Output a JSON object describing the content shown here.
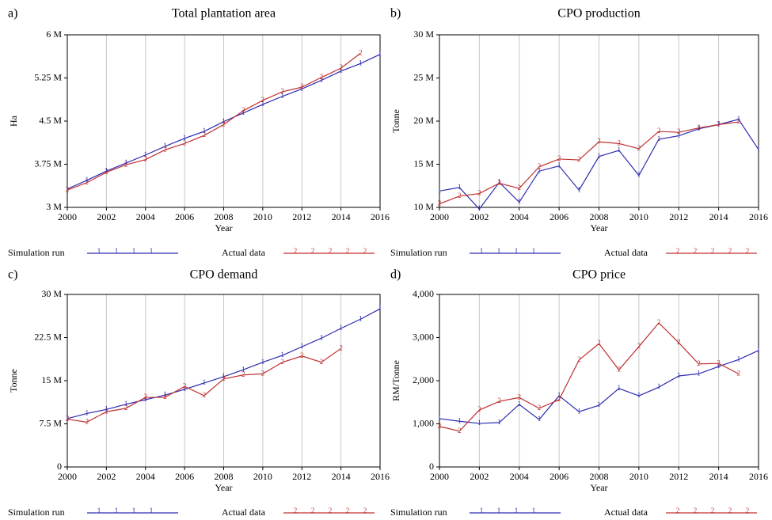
{
  "chart_data": [
    {
      "type": "line",
      "label": "a)",
      "title": "Total plantation area",
      "x_label": "Year",
      "y_label": "Ha",
      "x": [
        2000,
        2001,
        2002,
        2003,
        2004,
        2005,
        2006,
        2007,
        2008,
        2009,
        2010,
        2011,
        2012,
        2013,
        2014,
        2015,
        2016
      ],
      "series": [
        {
          "name": "Simulation run",
          "color": "#2b2bb0",
          "marker": "1",
          "values": [
            3320000,
            3470000,
            3630000,
            3770000,
            3910000,
            4060000,
            4200000,
            4320000,
            4490000,
            4640000,
            4790000,
            4930000,
            5060000,
            5210000,
            5370000,
            5500000,
            5660000
          ]
        },
        {
          "name": "Actual data",
          "color": "#c03030",
          "marker": "2",
          "values": [
            3300000,
            3430000,
            3610000,
            3740000,
            3830000,
            4000000,
            4110000,
            4250000,
            4440000,
            4680000,
            4860000,
            5010000,
            5090000,
            5260000,
            5420000,
            5680000,
            null
          ]
        }
      ],
      "xlim": [
        2000,
        2016
      ],
      "xticks": [
        2000,
        2002,
        2004,
        2006,
        2008,
        2010,
        2012,
        2014,
        2016
      ],
      "ylim": [
        3000000,
        6000000
      ],
      "yticks": [
        {
          "value": 3000000,
          "label": "3 M"
        },
        {
          "value": 3750000,
          "label": "3.75 M"
        },
        {
          "value": 4500000,
          "label": "4.5 M"
        },
        {
          "value": 5250000,
          "label": "5.25 M"
        },
        {
          "value": 6000000,
          "label": "6 M"
        }
      ],
      "grid": true
    },
    {
      "type": "line",
      "label": "b)",
      "title": "CPO production",
      "x_label": "Year",
      "y_label": "Tonne",
      "x": [
        2000,
        2001,
        2002,
        2003,
        2004,
        2005,
        2006,
        2007,
        2008,
        2009,
        2010,
        2011,
        2012,
        2013,
        2014,
        2015,
        2016
      ],
      "series": [
        {
          "name": "Simulation run",
          "color": "#2b2bb0",
          "marker": "1",
          "values": [
            11900000,
            12300000,
            9800000,
            12900000,
            10600000,
            14200000,
            14800000,
            12000000,
            15900000,
            16600000,
            13700000,
            17900000,
            18300000,
            19100000,
            19600000,
            20200000,
            16700000
          ]
        },
        {
          "name": "Actual data",
          "color": "#c03030",
          "marker": "2",
          "values": [
            10400000,
            11300000,
            11600000,
            12800000,
            12200000,
            14700000,
            15600000,
            15500000,
            17600000,
            17400000,
            16800000,
            18800000,
            18700000,
            19200000,
            19600000,
            19900000,
            null
          ]
        }
      ],
      "xlim": [
        2000,
        2016
      ],
      "xticks": [
        2000,
        2002,
        2004,
        2006,
        2008,
        2010,
        2012,
        2014,
        2016
      ],
      "ylim": [
        10000000,
        30000000
      ],
      "yticks": [
        {
          "value": 10000000,
          "label": "10 M"
        },
        {
          "value": 15000000,
          "label": "15 M"
        },
        {
          "value": 20000000,
          "label": "20 M"
        },
        {
          "value": 25000000,
          "label": "25 M"
        },
        {
          "value": 30000000,
          "label": "30 M"
        }
      ],
      "grid": true
    },
    {
      "type": "line",
      "label": "c)",
      "title": "CPO demand",
      "x_label": "Year",
      "y_label": "Tonne",
      "x": [
        2000,
        2001,
        2002,
        2003,
        2004,
        2005,
        2006,
        2007,
        2008,
        2009,
        2010,
        2011,
        2012,
        2013,
        2014,
        2015,
        2016
      ],
      "series": [
        {
          "name": "Simulation run",
          "color": "#2b2bb0",
          "marker": "1",
          "values": [
            8400000,
            9300000,
            10000000,
            10900000,
            11700000,
            12500000,
            13500000,
            14600000,
            15700000,
            16900000,
            18200000,
            19400000,
            20900000,
            22400000,
            24100000,
            25700000,
            27500000
          ]
        },
        {
          "name": "Actual data",
          "color": "#c03030",
          "marker": "2",
          "values": [
            8300000,
            7800000,
            9600000,
            10200000,
            12100000,
            12100000,
            14000000,
            12400000,
            15300000,
            16000000,
            16200000,
            18200000,
            19300000,
            18200000,
            20600000,
            null,
            null
          ]
        }
      ],
      "xlim": [
        2000,
        2016
      ],
      "xticks": [
        2000,
        2002,
        2004,
        2006,
        2008,
        2010,
        2012,
        2014,
        2016
      ],
      "ylim": [
        0,
        30000000
      ],
      "yticks": [
        0,
        {
          "value": 7500000,
          "label": "7.5 M"
        },
        {
          "value": 15000000,
          "label": "15 M"
        },
        {
          "value": 22500000,
          "label": "22.5 M"
        },
        {
          "value": 30000000,
          "label": "30 M"
        }
      ],
      "grid": true
    },
    {
      "type": "line",
      "label": "d)",
      "title": "CPO price",
      "x_label": "Year",
      "y_label": "RM/Tonne",
      "x": [
        2000,
        2001,
        2002,
        2003,
        2004,
        2005,
        2006,
        2007,
        2008,
        2009,
        2010,
        2011,
        2012,
        2013,
        2014,
        2015,
        2016
      ],
      "series": [
        {
          "name": "Simulation run",
          "color": "#2b2bb0",
          "marker": "1",
          "values": [
            1120,
            1060,
            1010,
            1030,
            1450,
            1100,
            1650,
            1280,
            1430,
            1820,
            1650,
            1850,
            2110,
            2160,
            2330,
            2490,
            2700
          ]
        },
        {
          "name": "Actual data",
          "color": "#c03030",
          "marker": "2",
          "values": [
            940,
            830,
            1320,
            1520,
            1610,
            1360,
            1560,
            2480,
            2860,
            2250,
            2790,
            3340,
            2880,
            2390,
            2400,
            2160,
            null
          ]
        }
      ],
      "xlim": [
        2000,
        2016
      ],
      "xticks": [
        2000,
        2002,
        2004,
        2006,
        2008,
        2010,
        2012,
        2014,
        2016
      ],
      "ylim": [
        0,
        4000
      ],
      "yticks": [
        0,
        {
          "value": 1000,
          "label": "1,000"
        },
        {
          "value": 2000,
          "label": "2,000"
        },
        {
          "value": 3000,
          "label": "3,000"
        },
        {
          "value": 4000,
          "label": "4,000"
        }
      ],
      "grid": true
    }
  ]
}
